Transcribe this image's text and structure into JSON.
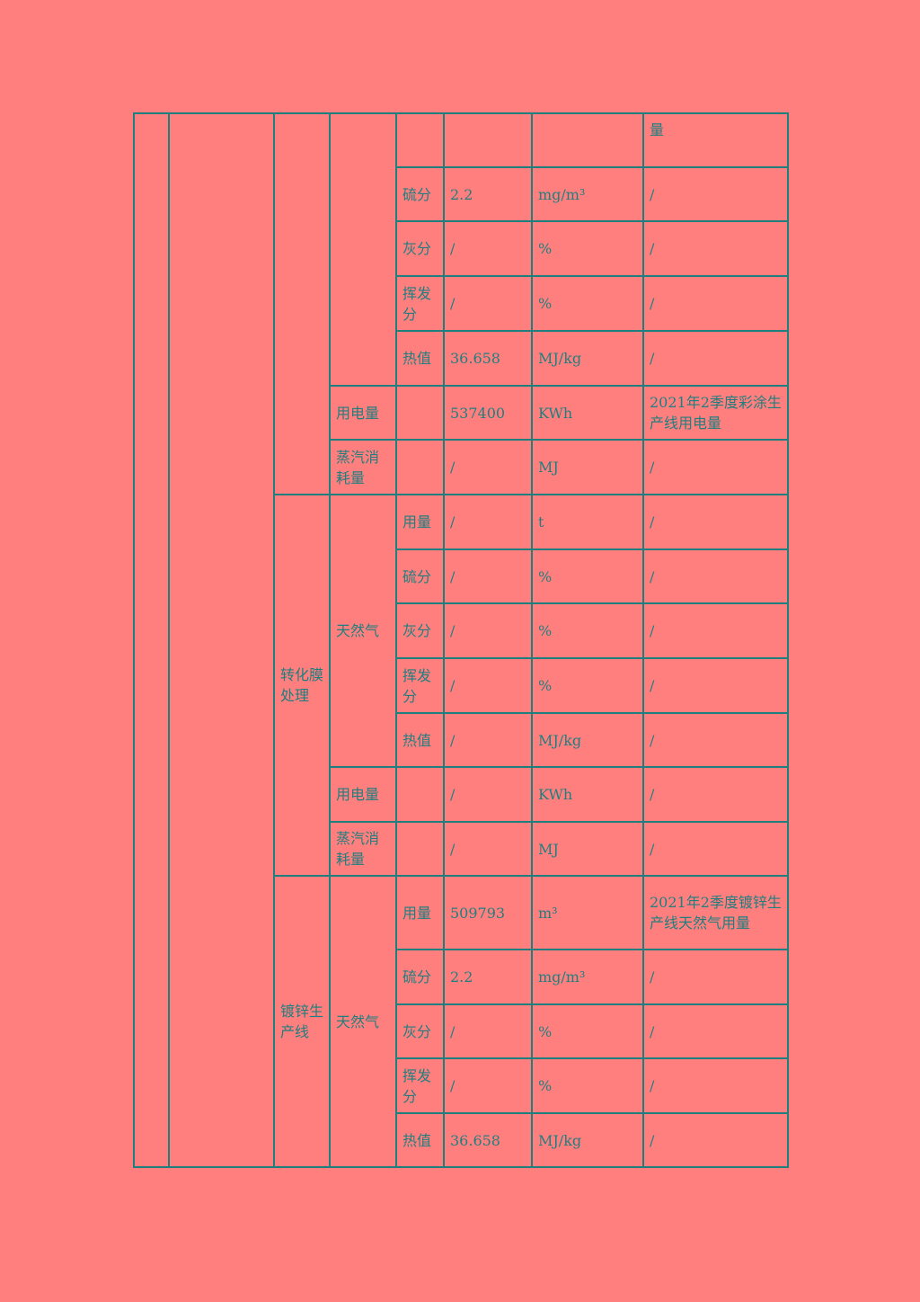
{
  "colors": {
    "background": "#FF7F7F",
    "line_text": "#1F7F7F"
  },
  "rows_part1": {
    "top_row_note": "量",
    "sub": [
      {
        "param": "硫分",
        "value": "2.2",
        "unit": "mg/m³",
        "note": "/"
      },
      {
        "param": "灰分",
        "value": "/",
        "unit": "%",
        "note": "/"
      },
      {
        "param": "挥发分",
        "value": "/",
        "unit": "%",
        "note": "/"
      },
      {
        "param": "热值",
        "value": "36.658",
        "unit": "MJ/kg",
        "note": "/"
      }
    ],
    "electricity": {
      "label": "用电量",
      "value": "537400",
      "unit": "KWh",
      "note": "2021年2季度彩涂生产线用电量"
    },
    "steam": {
      "label": "蒸汽消耗量",
      "value": "/",
      "unit": "MJ",
      "note": "/"
    }
  },
  "section_conversion": {
    "process": "转化膜处理",
    "fuel": "天然气",
    "sub": [
      {
        "param": "用量",
        "value": "/",
        "unit": "t",
        "note": "/"
      },
      {
        "param": "硫分",
        "value": "/",
        "unit": "%",
        "note": "/"
      },
      {
        "param": "灰分",
        "value": "/",
        "unit": "%",
        "note": "/"
      },
      {
        "param": "挥发分",
        "value": "/",
        "unit": "%",
        "note": "/"
      },
      {
        "param": "热值",
        "value": "/",
        "unit": "MJ/kg",
        "note": "/"
      }
    ],
    "electricity": {
      "label": "用电量",
      "value": "/",
      "unit": "KWh",
      "note": "/"
    },
    "steam": {
      "label": "蒸汽消耗量",
      "value": "/",
      "unit": "MJ",
      "note": "/"
    }
  },
  "section_galvanizing": {
    "process": "镀锌生产线",
    "fuel": "天然气",
    "sub": [
      {
        "param": "用量",
        "value": "509793",
        "unit": "m³",
        "note": "2021年2季度镀锌生产线天然气用量"
      },
      {
        "param": "硫分",
        "value": "2.2",
        "unit": "mg/m³",
        "note": "/"
      },
      {
        "param": "灰分",
        "value": "/",
        "unit": "%",
        "note": "/"
      },
      {
        "param": "挥发分",
        "value": "/",
        "unit": "%",
        "note": "/"
      },
      {
        "param": "热值",
        "value": "36.658",
        "unit": "MJ/kg",
        "note": "/"
      }
    ]
  }
}
